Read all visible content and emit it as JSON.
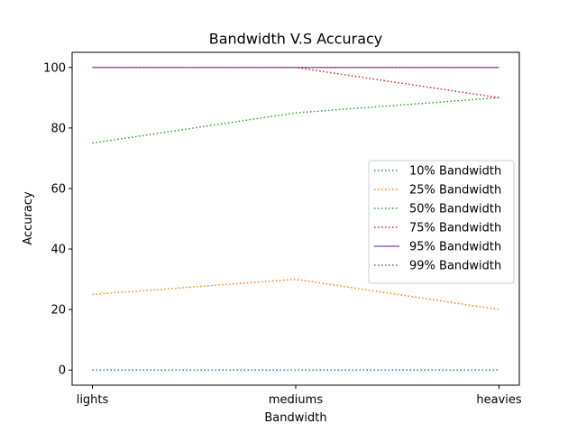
{
  "chart_data": {
    "type": "line",
    "title": "Bandwidth V.S Accuracy",
    "xlabel": "Bandwidth",
    "ylabel": "Accuracy",
    "categories": [
      "lights",
      "mediums",
      "heavies"
    ],
    "ylim": [
      -5,
      105
    ],
    "yticks": [
      0,
      20,
      40,
      60,
      80,
      100
    ],
    "grid": false,
    "legend_position": "center-right",
    "series": [
      {
        "name": "10% Bandwidth",
        "values": [
          0,
          0,
          0
        ],
        "color": "#1f77b4",
        "style": "dotted"
      },
      {
        "name": "25% Bandwidth",
        "values": [
          25,
          30,
          20
        ],
        "color": "#ff7f0e",
        "style": "dotted"
      },
      {
        "name": "50% Bandwidth",
        "values": [
          75,
          85,
          90
        ],
        "color": "#2ca02c",
        "style": "dotted"
      },
      {
        "name": "75% Bandwidth",
        "values": [
          100,
          100,
          90
        ],
        "color": "#d62728",
        "style": "dotted"
      },
      {
        "name": "95% Bandwidth",
        "values": [
          100,
          100,
          100
        ],
        "color": "#9467bd",
        "style": "solid"
      },
      {
        "name": "99% Bandwidth",
        "values": [
          100,
          100,
          100
        ],
        "color": "#8c564b",
        "style": "dotted"
      }
    ]
  }
}
